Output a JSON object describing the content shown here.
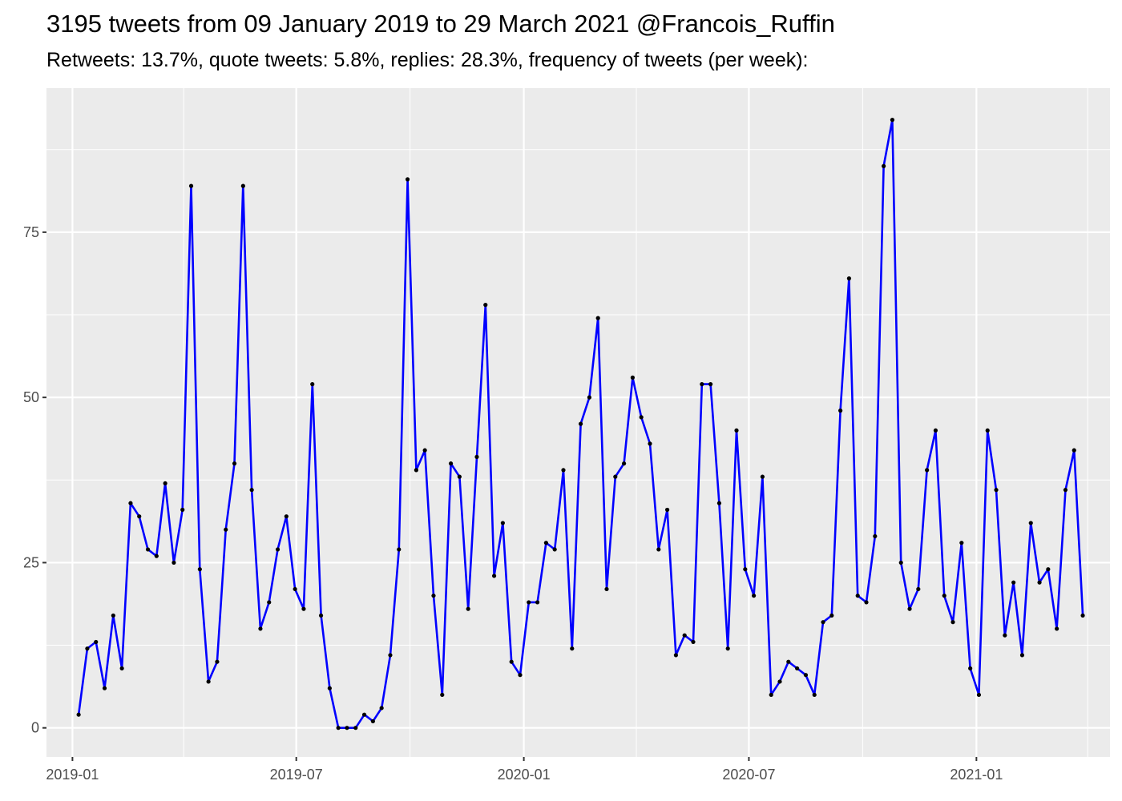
{
  "chart_data": {
    "type": "line",
    "title": "3195 tweets from 09 January 2019 to 29 March 2021 @Francois_Ruffin",
    "subtitle": "Retweets: 13.7%, quote tweets: 5.8%, replies: 28.3%, frequency of tweets (per week):",
    "xlabel": "",
    "ylabel": "",
    "x_ticks": [
      "2019-01",
      "2019-07",
      "2020-01",
      "2020-07",
      "2021-01"
    ],
    "y_ticks": [
      0,
      25,
      50,
      75
    ],
    "ylim": [
      -4.4,
      96.8
    ],
    "xlim": [
      "2018-12-11",
      "2021-04-19"
    ],
    "grid": true,
    "line_color": "#0000ff",
    "point_color": "#000000",
    "background": "#ebebeb",
    "x": [
      "2019-01-06",
      "2019-01-13",
      "2019-01-20",
      "2019-01-27",
      "2019-02-03",
      "2019-02-10",
      "2019-02-17",
      "2019-02-24",
      "2019-03-03",
      "2019-03-10",
      "2019-03-17",
      "2019-03-24",
      "2019-03-31",
      "2019-04-07",
      "2019-04-14",
      "2019-04-21",
      "2019-04-28",
      "2019-05-05",
      "2019-05-12",
      "2019-05-19",
      "2019-05-26",
      "2019-06-02",
      "2019-06-09",
      "2019-06-16",
      "2019-06-23",
      "2019-06-30",
      "2019-07-07",
      "2019-07-14",
      "2019-07-21",
      "2019-07-28",
      "2019-08-04",
      "2019-08-11",
      "2019-08-18",
      "2019-08-25",
      "2019-09-01",
      "2019-09-08",
      "2019-09-15",
      "2019-09-22",
      "2019-09-29",
      "2019-10-06",
      "2019-10-13",
      "2019-10-20",
      "2019-10-27",
      "2019-11-03",
      "2019-11-10",
      "2019-11-17",
      "2019-11-24",
      "2019-12-01",
      "2019-12-08",
      "2019-12-15",
      "2019-12-22",
      "2019-12-29",
      "2020-01-05",
      "2020-01-12",
      "2020-01-19",
      "2020-01-26",
      "2020-02-02",
      "2020-02-09",
      "2020-02-16",
      "2020-02-23",
      "2020-03-01",
      "2020-03-08",
      "2020-03-15",
      "2020-03-22",
      "2020-03-29",
      "2020-04-05",
      "2020-04-12",
      "2020-04-19",
      "2020-04-26",
      "2020-05-03",
      "2020-05-10",
      "2020-05-17",
      "2020-05-24",
      "2020-05-31",
      "2020-06-07",
      "2020-06-14",
      "2020-06-21",
      "2020-06-28",
      "2020-07-05",
      "2020-07-12",
      "2020-07-19",
      "2020-07-26",
      "2020-08-02",
      "2020-08-09",
      "2020-08-16",
      "2020-08-23",
      "2020-08-30",
      "2020-09-06",
      "2020-09-13",
      "2020-09-20",
      "2020-09-27",
      "2020-10-04",
      "2020-10-11",
      "2020-10-18",
      "2020-10-25",
      "2020-11-01",
      "2020-11-08",
      "2020-11-15",
      "2020-11-22",
      "2020-11-29",
      "2020-12-06",
      "2020-12-13",
      "2020-12-20",
      "2020-12-27",
      "2021-01-03",
      "2021-01-10",
      "2021-01-17",
      "2021-01-24",
      "2021-01-31",
      "2021-02-07",
      "2021-02-14",
      "2021-02-21",
      "2021-02-28",
      "2021-03-07",
      "2021-03-14",
      "2021-03-21",
      "2021-03-28"
    ],
    "values": [
      2,
      12,
      13,
      6,
      17,
      9,
      34,
      32,
      27,
      26,
      37,
      25,
      33,
      82,
      24,
      7,
      10,
      30,
      40,
      82,
      36,
      15,
      19,
      27,
      32,
      21,
      18,
      52,
      17,
      6,
      0,
      0,
      0,
      2,
      1,
      3,
      11,
      27,
      83,
      39,
      42,
      20,
      5,
      40,
      38,
      18,
      41,
      64,
      23,
      31,
      10,
      8,
      19,
      19,
      28,
      27,
      39,
      12,
      46,
      50,
      62,
      21,
      38,
      40,
      53,
      47,
      43,
      27,
      33,
      11,
      14,
      13,
      52,
      52,
      34,
      12,
      45,
      24,
      20,
      38,
      5,
      7,
      10,
      9,
      8,
      5,
      16,
      17,
      48,
      68,
      20,
      19,
      29,
      85,
      92,
      25,
      18,
      21,
      39,
      45,
      20,
      16,
      28,
      9,
      5,
      45,
      36,
      14,
      22,
      11,
      31,
      22,
      24,
      15,
      36,
      42,
      17
    ]
  }
}
